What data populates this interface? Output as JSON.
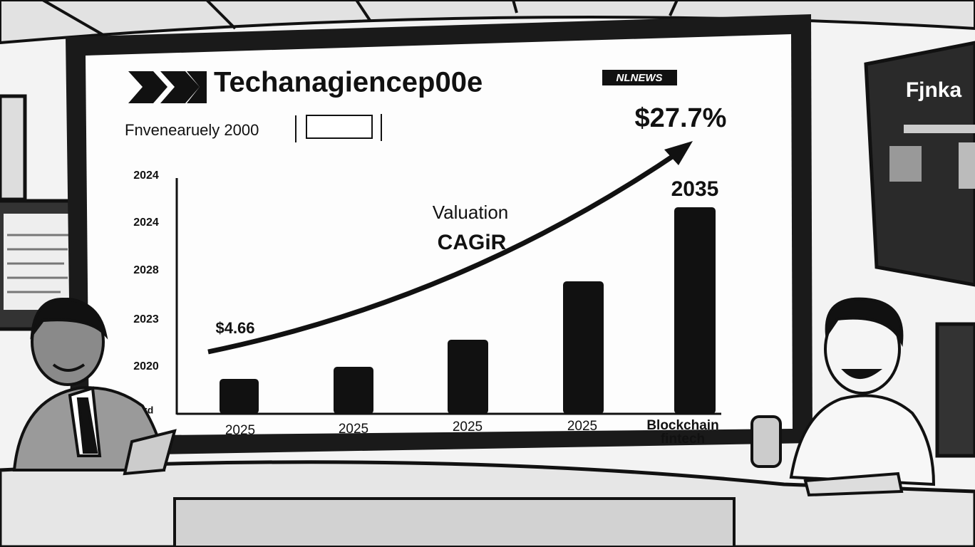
{
  "screen": {
    "title": "Techanagiencep00e",
    "badge": "NLNEWS",
    "subtitle": "Fnvenearuely 2000",
    "headline": "$27.7%",
    "y_labels": [
      "2024",
      "2024",
      "2028",
      "2023",
      "2020",
      "l=d"
    ],
    "start_label": "$4.66",
    "annotation": [
      "Valuation",
      "CAGiR"
    ],
    "end_label": "2035",
    "x_labels": [
      "2025",
      "2025",
      "2025",
      "2025",
      "Blockchain",
      "fintech"
    ]
  },
  "side_monitor": {
    "title": "Fjnka"
  }
}
